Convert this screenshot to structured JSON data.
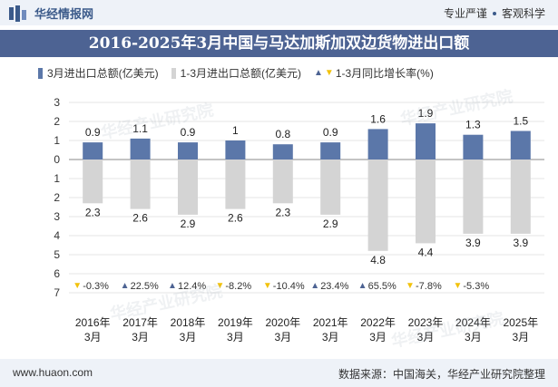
{
  "header": {
    "brand_name": "华经情报网",
    "slogan_1": "专业严谨",
    "slogan_2": "客观科学"
  },
  "title": "2016-2025年3月中国与马达加斯加双边货物进出口额",
  "legend": {
    "series_1": "3月进出口总额(亿美元)",
    "series_2": "1-3月进出口总额(亿美元)",
    "series_3": "1-3月同比增长率(%)"
  },
  "footer": {
    "website": "www.huaon.com",
    "source": "数据来源：中国海关，华经产业研究院整理"
  },
  "watermark": "华经产业研究院",
  "colors": {
    "bar_up": "#5b77a9",
    "bar_down": "#d4d4d4",
    "tri_up": "#4d6393",
    "tri_down": "#f2c20c"
  },
  "chart_data": {
    "type": "bar",
    "categories": [
      "2016年\n3月",
      "2017年\n3月",
      "2018年\n3月",
      "2019年\n3月",
      "2020年\n3月",
      "2021年\n3月",
      "2022年\n3月",
      "2023年\n3月",
      "2024年\n3月",
      "2025年\n3月"
    ],
    "series": [
      {
        "name": "3月进出口总额(亿美元)",
        "values": [
          0.9,
          1.1,
          0.9,
          1,
          0.8,
          0.9,
          1.6,
          1.9,
          1.3,
          1.5
        ],
        "direction": "up"
      },
      {
        "name": "1-3月进出口总额(亿美元)",
        "values": [
          2.3,
          2.6,
          2.9,
          2.6,
          2.3,
          2.9,
          4.8,
          4.4,
          3.9,
          3.9
        ],
        "direction": "down"
      },
      {
        "name": "1-3月同比增长率(%)",
        "values": [
          -0.3,
          22.5,
          12.4,
          -8.2,
          -10.4,
          23.4,
          65.5,
          -7.8,
          -5.3,
          null
        ]
      }
    ],
    "yticks_up": [
      "3",
      "2",
      "1",
      "0"
    ],
    "yticks_down": [
      "1",
      "2",
      "3",
      "4",
      "5",
      "6",
      "7"
    ],
    "ylim_up": [
      0,
      3
    ],
    "ylim_down": [
      0,
      7
    ],
    "value_labels_1": [
      "0.9",
      "1.1",
      "0.9",
      "1",
      "0.8",
      "0.9",
      "1.6",
      "1.9",
      "1.3",
      "1.5"
    ],
    "value_labels_2": [
      "2.3",
      "2.6",
      "2.9",
      "2.6",
      "2.3",
      "2.9",
      "4.8",
      "4.4",
      "3.9",
      "3.9"
    ],
    "growth_labels": [
      "-0.3%",
      "22.5%",
      "12.4%",
      "-8.2%",
      "-10.4%",
      "23.4%",
      "65.5%",
      "-7.8%",
      "-5.3%",
      ""
    ]
  }
}
